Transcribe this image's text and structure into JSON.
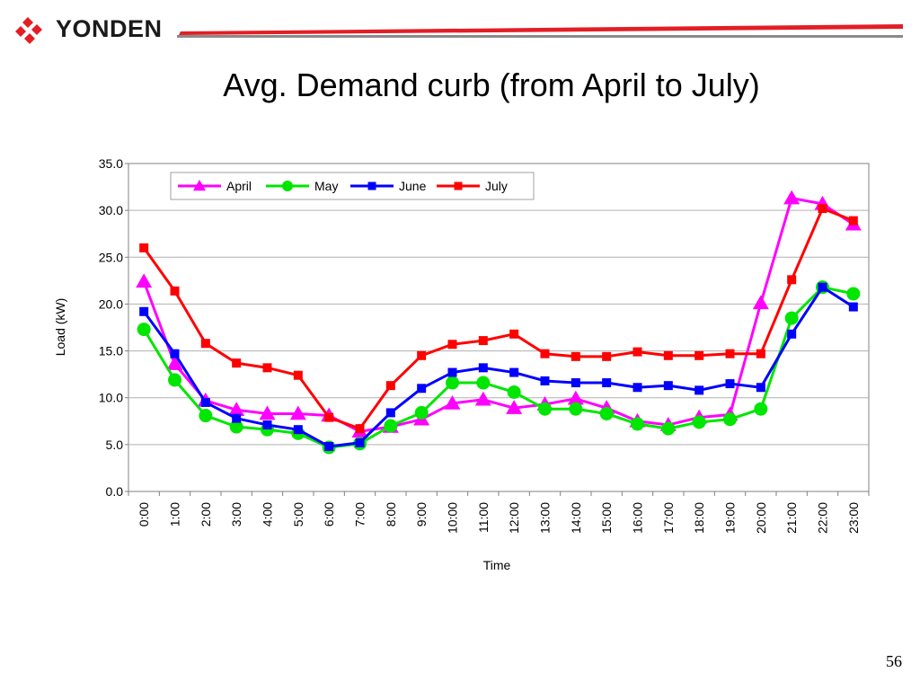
{
  "slide": {
    "logo_text": "YONDEN",
    "title": "Avg. Demand curb (from April to July)",
    "page_number": "56",
    "colors": {
      "logo_red": "#e31e25",
      "rule_red": "#e31e25",
      "rule_gray": "#8a8a8a"
    }
  },
  "chart_data": {
    "type": "line",
    "title": "",
    "xlabel": "Time",
    "ylabel": "Load (kW)",
    "ylim": [
      0,
      35
    ],
    "yticks": [
      "0.0",
      "5.0",
      "10.0",
      "15.0",
      "20.0",
      "25.0",
      "30.0",
      "35.0"
    ],
    "grid": "horizontal",
    "legend": "top-left",
    "categories": [
      "0:00",
      "1:00",
      "2:00",
      "3:00",
      "4:00",
      "5:00",
      "6:00",
      "7:00",
      "8:00",
      "9:00",
      "10:00",
      "11:00",
      "12:00",
      "13:00",
      "14:00",
      "15:00",
      "16:00",
      "17:00",
      "18:00",
      "19:00",
      "20:00",
      "21:00",
      "22:00",
      "23:00"
    ],
    "series": [
      {
        "name": "April",
        "color": "#ff00ff",
        "marker": "triangle",
        "values": [
          22.4,
          13.6,
          9.7,
          8.7,
          8.3,
          8.3,
          8.1,
          6.4,
          6.9,
          7.7,
          9.4,
          9.8,
          8.9,
          9.3,
          9.9,
          8.9,
          7.5,
          7.1,
          7.9,
          8.2,
          20.1,
          31.3,
          30.7,
          28.5
        ]
      },
      {
        "name": "May",
        "color": "#00e600",
        "marker": "circle",
        "values": [
          17.3,
          11.9,
          8.1,
          6.9,
          6.6,
          6.2,
          4.7,
          5.1,
          7.0,
          8.4,
          11.6,
          11.6,
          10.6,
          8.8,
          8.8,
          8.3,
          7.2,
          6.7,
          7.4,
          7.7,
          8.8,
          18.5,
          21.8,
          21.1
        ]
      },
      {
        "name": "June",
        "color": "#0000ff",
        "marker": "square",
        "values": [
          19.2,
          14.7,
          9.5,
          7.8,
          7.1,
          6.6,
          4.8,
          5.2,
          8.4,
          11.0,
          12.7,
          13.2,
          12.7,
          11.8,
          11.6,
          11.6,
          11.1,
          11.3,
          10.8,
          11.5,
          11.1,
          16.8,
          21.8,
          19.7
        ]
      },
      {
        "name": "July",
        "color": "#ff0000",
        "marker": "square",
        "values": [
          26.0,
          21.4,
          15.8,
          13.7,
          13.2,
          12.4,
          7.9,
          6.7,
          11.3,
          14.5,
          15.7,
          16.1,
          16.8,
          14.7,
          14.4,
          14.4,
          14.9,
          14.5,
          14.5,
          14.7,
          14.7,
          22.6,
          30.2,
          28.9
        ]
      }
    ]
  }
}
